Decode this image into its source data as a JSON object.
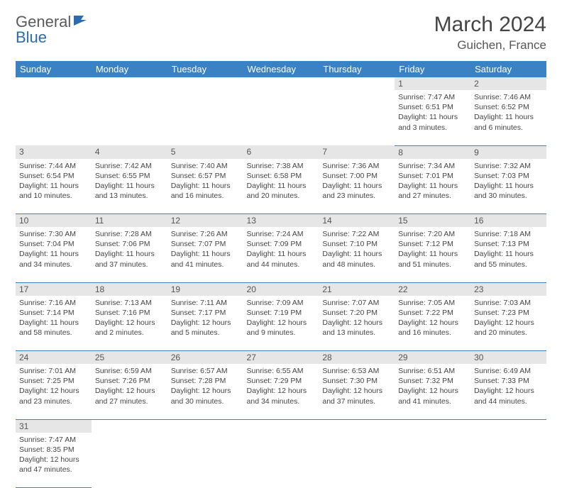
{
  "logo": {
    "text1": "General",
    "text2": "Blue"
  },
  "title": "March 2024",
  "location": "Guichen, France",
  "colors": {
    "header_bg": "#3b82c4",
    "header_text": "#ffffff",
    "daynum_bg": "#e6e6e6",
    "border": "#3b82c4",
    "text": "#444444",
    "logo_gray": "#5a5a5a",
    "logo_blue": "#2b6cb0"
  },
  "weekdays": [
    "Sunday",
    "Monday",
    "Tuesday",
    "Wednesday",
    "Thursday",
    "Friday",
    "Saturday"
  ],
  "weeks": [
    {
      "nums": [
        "",
        "",
        "",
        "",
        "",
        "1",
        "2"
      ],
      "cells": [
        null,
        null,
        null,
        null,
        null,
        {
          "sunrise": "Sunrise: 7:47 AM",
          "sunset": "Sunset: 6:51 PM",
          "daylight1": "Daylight: 11 hours",
          "daylight2": "and 3 minutes."
        },
        {
          "sunrise": "Sunrise: 7:46 AM",
          "sunset": "Sunset: 6:52 PM",
          "daylight1": "Daylight: 11 hours",
          "daylight2": "and 6 minutes."
        }
      ]
    },
    {
      "nums": [
        "3",
        "4",
        "5",
        "6",
        "7",
        "8",
        "9"
      ],
      "cells": [
        {
          "sunrise": "Sunrise: 7:44 AM",
          "sunset": "Sunset: 6:54 PM",
          "daylight1": "Daylight: 11 hours",
          "daylight2": "and 10 minutes."
        },
        {
          "sunrise": "Sunrise: 7:42 AM",
          "sunset": "Sunset: 6:55 PM",
          "daylight1": "Daylight: 11 hours",
          "daylight2": "and 13 minutes."
        },
        {
          "sunrise": "Sunrise: 7:40 AM",
          "sunset": "Sunset: 6:57 PM",
          "daylight1": "Daylight: 11 hours",
          "daylight2": "and 16 minutes."
        },
        {
          "sunrise": "Sunrise: 7:38 AM",
          "sunset": "Sunset: 6:58 PM",
          "daylight1": "Daylight: 11 hours",
          "daylight2": "and 20 minutes."
        },
        {
          "sunrise": "Sunrise: 7:36 AM",
          "sunset": "Sunset: 7:00 PM",
          "daylight1": "Daylight: 11 hours",
          "daylight2": "and 23 minutes."
        },
        {
          "sunrise": "Sunrise: 7:34 AM",
          "sunset": "Sunset: 7:01 PM",
          "daylight1": "Daylight: 11 hours",
          "daylight2": "and 27 minutes."
        },
        {
          "sunrise": "Sunrise: 7:32 AM",
          "sunset": "Sunset: 7:03 PM",
          "daylight1": "Daylight: 11 hours",
          "daylight2": "and 30 minutes."
        }
      ]
    },
    {
      "nums": [
        "10",
        "11",
        "12",
        "13",
        "14",
        "15",
        "16"
      ],
      "cells": [
        {
          "sunrise": "Sunrise: 7:30 AM",
          "sunset": "Sunset: 7:04 PM",
          "daylight1": "Daylight: 11 hours",
          "daylight2": "and 34 minutes."
        },
        {
          "sunrise": "Sunrise: 7:28 AM",
          "sunset": "Sunset: 7:06 PM",
          "daylight1": "Daylight: 11 hours",
          "daylight2": "and 37 minutes."
        },
        {
          "sunrise": "Sunrise: 7:26 AM",
          "sunset": "Sunset: 7:07 PM",
          "daylight1": "Daylight: 11 hours",
          "daylight2": "and 41 minutes."
        },
        {
          "sunrise": "Sunrise: 7:24 AM",
          "sunset": "Sunset: 7:09 PM",
          "daylight1": "Daylight: 11 hours",
          "daylight2": "and 44 minutes."
        },
        {
          "sunrise": "Sunrise: 7:22 AM",
          "sunset": "Sunset: 7:10 PM",
          "daylight1": "Daylight: 11 hours",
          "daylight2": "and 48 minutes."
        },
        {
          "sunrise": "Sunrise: 7:20 AM",
          "sunset": "Sunset: 7:12 PM",
          "daylight1": "Daylight: 11 hours",
          "daylight2": "and 51 minutes."
        },
        {
          "sunrise": "Sunrise: 7:18 AM",
          "sunset": "Sunset: 7:13 PM",
          "daylight1": "Daylight: 11 hours",
          "daylight2": "and 55 minutes."
        }
      ]
    },
    {
      "nums": [
        "17",
        "18",
        "19",
        "20",
        "21",
        "22",
        "23"
      ],
      "cells": [
        {
          "sunrise": "Sunrise: 7:16 AM",
          "sunset": "Sunset: 7:14 PM",
          "daylight1": "Daylight: 11 hours",
          "daylight2": "and 58 minutes."
        },
        {
          "sunrise": "Sunrise: 7:13 AM",
          "sunset": "Sunset: 7:16 PM",
          "daylight1": "Daylight: 12 hours",
          "daylight2": "and 2 minutes."
        },
        {
          "sunrise": "Sunrise: 7:11 AM",
          "sunset": "Sunset: 7:17 PM",
          "daylight1": "Daylight: 12 hours",
          "daylight2": "and 5 minutes."
        },
        {
          "sunrise": "Sunrise: 7:09 AM",
          "sunset": "Sunset: 7:19 PM",
          "daylight1": "Daylight: 12 hours",
          "daylight2": "and 9 minutes."
        },
        {
          "sunrise": "Sunrise: 7:07 AM",
          "sunset": "Sunset: 7:20 PM",
          "daylight1": "Daylight: 12 hours",
          "daylight2": "and 13 minutes."
        },
        {
          "sunrise": "Sunrise: 7:05 AM",
          "sunset": "Sunset: 7:22 PM",
          "daylight1": "Daylight: 12 hours",
          "daylight2": "and 16 minutes."
        },
        {
          "sunrise": "Sunrise: 7:03 AM",
          "sunset": "Sunset: 7:23 PM",
          "daylight1": "Daylight: 12 hours",
          "daylight2": "and 20 minutes."
        }
      ]
    },
    {
      "nums": [
        "24",
        "25",
        "26",
        "27",
        "28",
        "29",
        "30"
      ],
      "cells": [
        {
          "sunrise": "Sunrise: 7:01 AM",
          "sunset": "Sunset: 7:25 PM",
          "daylight1": "Daylight: 12 hours",
          "daylight2": "and 23 minutes."
        },
        {
          "sunrise": "Sunrise: 6:59 AM",
          "sunset": "Sunset: 7:26 PM",
          "daylight1": "Daylight: 12 hours",
          "daylight2": "and 27 minutes."
        },
        {
          "sunrise": "Sunrise: 6:57 AM",
          "sunset": "Sunset: 7:28 PM",
          "daylight1": "Daylight: 12 hours",
          "daylight2": "and 30 minutes."
        },
        {
          "sunrise": "Sunrise: 6:55 AM",
          "sunset": "Sunset: 7:29 PM",
          "daylight1": "Daylight: 12 hours",
          "daylight2": "and 34 minutes."
        },
        {
          "sunrise": "Sunrise: 6:53 AM",
          "sunset": "Sunset: 7:30 PM",
          "daylight1": "Daylight: 12 hours",
          "daylight2": "and 37 minutes."
        },
        {
          "sunrise": "Sunrise: 6:51 AM",
          "sunset": "Sunset: 7:32 PM",
          "daylight1": "Daylight: 12 hours",
          "daylight2": "and 41 minutes."
        },
        {
          "sunrise": "Sunrise: 6:49 AM",
          "sunset": "Sunset: 7:33 PM",
          "daylight1": "Daylight: 12 hours",
          "daylight2": "and 44 minutes."
        }
      ]
    },
    {
      "nums": [
        "31",
        "",
        "",
        "",
        "",
        "",
        ""
      ],
      "cells": [
        {
          "sunrise": "Sunrise: 7:47 AM",
          "sunset": "Sunset: 8:35 PM",
          "daylight1": "Daylight: 12 hours",
          "daylight2": "and 47 minutes."
        },
        null,
        null,
        null,
        null,
        null,
        null
      ]
    }
  ]
}
